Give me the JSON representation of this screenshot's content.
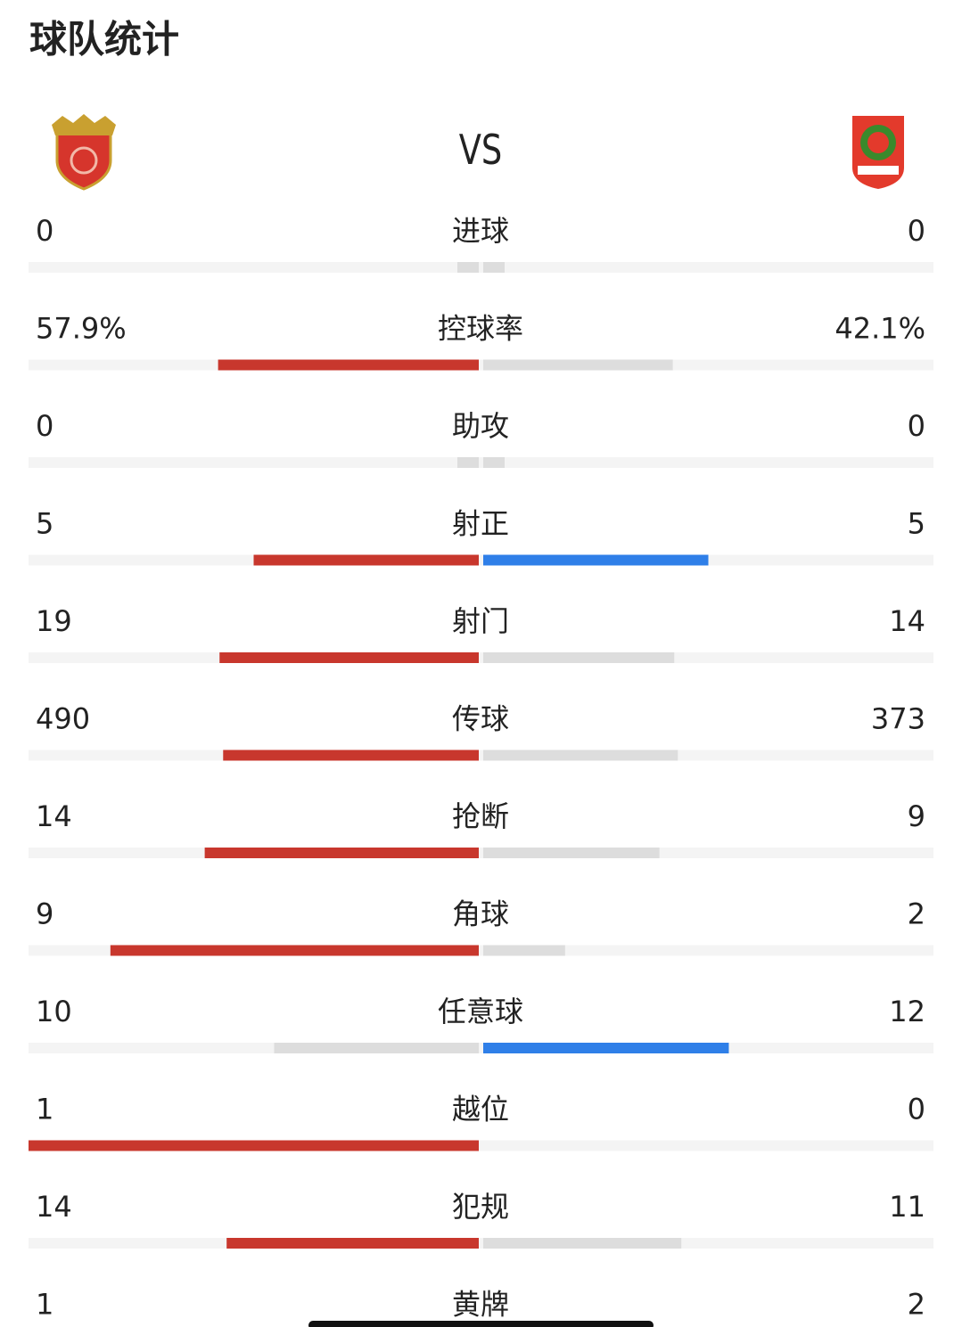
{
  "header": {
    "title": "球队统计",
    "vs": "VS"
  },
  "stats": [
    {
      "label": "进球",
      "home": 0,
      "away": 0
    },
    {
      "label": "控球率",
      "home": 57.9,
      "home_label": "57.9%",
      "away": 42.1,
      "away_label": "42.1%"
    },
    {
      "label": "助攻",
      "home": 0,
      "away": 0
    },
    {
      "label": "射正",
      "home": 5,
      "away": 5
    },
    {
      "label": "射门",
      "home": 19,
      "away": 14
    },
    {
      "label": "传球",
      "home": 490,
      "away": 373
    },
    {
      "label": "抢断",
      "home": 14,
      "away": 9
    },
    {
      "label": "角球",
      "home": 9,
      "away": 2
    },
    {
      "label": "任意球",
      "home": 10,
      "away": 12
    },
    {
      "label": "越位",
      "home": 1,
      "away": 0
    },
    {
      "label": "犯规",
      "home": 14,
      "away": 11
    },
    {
      "label": "黄牌",
      "home": 1,
      "away": 2
    }
  ]
}
